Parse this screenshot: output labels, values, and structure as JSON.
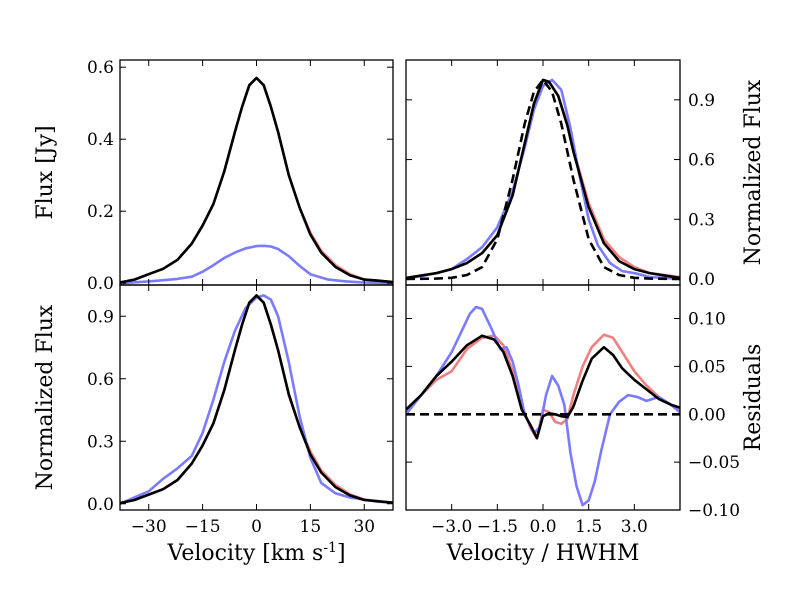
{
  "colors": {
    "blue": "#7b7bff",
    "red": "#f08080",
    "black": "#000000"
  },
  "chart_data": [
    {
      "type": "line",
      "panel": "top-left",
      "xlim": [
        -38,
        38
      ],
      "ylim": [
        -0.005,
        0.62
      ],
      "xticks": [
        -30,
        -15,
        0,
        15,
        30
      ],
      "xtick_labels": [
        "",
        "",
        "",
        "",
        ""
      ],
      "yticks": [
        0.0,
        0.2,
        0.4,
        0.6
      ],
      "ytick_labels": [
        "0.0",
        "0.2",
        "0.4",
        "0.6"
      ],
      "ytick_side": "left",
      "xlabel": "",
      "ylabel": "Flux [Jy]",
      "ylabel_side": "left",
      "series": [
        {
          "color": "red",
          "dash": false,
          "x": [
            -38,
            -34,
            -30,
            -26,
            -22,
            -18,
            -15,
            -12,
            -9,
            -6,
            -4,
            -2,
            0,
            2,
            4,
            6,
            9,
            12,
            15,
            18,
            22,
            26,
            30,
            34,
            38
          ],
          "y": [
            0.002,
            0.01,
            0.025,
            0.04,
            0.065,
            0.11,
            0.16,
            0.22,
            0.31,
            0.42,
            0.49,
            0.55,
            0.57,
            0.55,
            0.49,
            0.42,
            0.3,
            0.21,
            0.14,
            0.09,
            0.05,
            0.025,
            0.01,
            0.007,
            0.003
          ]
        },
        {
          "color": "blue",
          "dash": false,
          "x": [
            -38,
            -30,
            -22,
            -18,
            -15,
            -12,
            -9,
            -6,
            -3,
            0,
            2,
            4,
            6,
            9,
            12,
            15,
            20,
            25,
            30,
            38
          ],
          "y": [
            0.0,
            0.005,
            0.012,
            0.018,
            0.032,
            0.05,
            0.07,
            0.085,
            0.097,
            0.103,
            0.104,
            0.102,
            0.095,
            0.075,
            0.048,
            0.025,
            0.01,
            0.005,
            0.002,
            0.0
          ]
        },
        {
          "color": "black",
          "dash": false,
          "x": [
            -38,
            -34,
            -30,
            -26,
            -22,
            -18,
            -15,
            -12,
            -9,
            -6,
            -4,
            -2,
            0,
            2,
            4,
            6,
            9,
            12,
            15,
            18,
            22,
            26,
            30,
            34,
            38
          ],
          "y": [
            0.002,
            0.01,
            0.025,
            0.04,
            0.065,
            0.11,
            0.16,
            0.22,
            0.31,
            0.42,
            0.49,
            0.55,
            0.57,
            0.55,
            0.49,
            0.42,
            0.3,
            0.21,
            0.135,
            0.085,
            0.045,
            0.022,
            0.01,
            0.007,
            0.003
          ]
        }
      ]
    },
    {
      "type": "line",
      "panel": "top-right",
      "xlim": [
        -4.5,
        4.5
      ],
      "ylim": [
        -0.03,
        1.1
      ],
      "xticks": [
        -3.0,
        -1.5,
        0.0,
        1.5,
        3.0
      ],
      "xtick_labels": [
        "",
        "",
        "",
        "",
        ""
      ],
      "yticks": [
        0.0,
        0.3,
        0.6,
        0.9
      ],
      "ytick_labels": [
        "0.0",
        "0.3",
        "0.6",
        "0.9"
      ],
      "ytick_side": "right",
      "xlabel": "",
      "ylabel": "Normalized Flux",
      "ylabel_side": "right",
      "series": [
        {
          "color": "red",
          "dash": false,
          "x": [
            -4.5,
            -3.5,
            -3.0,
            -2.5,
            -2.0,
            -1.5,
            -1.0,
            -0.6,
            -0.3,
            0.0,
            0.2,
            0.5,
            0.8,
            1.0,
            1.5,
            2.0,
            2.5,
            3.0,
            3.5,
            4.5
          ],
          "y": [
            0.005,
            0.03,
            0.05,
            0.08,
            0.13,
            0.22,
            0.42,
            0.68,
            0.88,
            1.0,
            0.99,
            0.92,
            0.78,
            0.65,
            0.38,
            0.2,
            0.11,
            0.06,
            0.03,
            0.01
          ]
        },
        {
          "color": "blue",
          "dash": false,
          "x": [
            -4.5,
            -3.5,
            -3.0,
            -2.5,
            -2.0,
            -1.5,
            -1.0,
            -0.6,
            -0.3,
            0.0,
            0.3,
            0.6,
            0.9,
            1.2,
            1.5,
            1.8,
            2.2,
            2.6,
            3.0,
            3.5,
            4.5
          ],
          "y": [
            0.0,
            0.03,
            0.05,
            0.1,
            0.16,
            0.26,
            0.44,
            0.66,
            0.85,
            0.97,
            1.0,
            0.95,
            0.76,
            0.52,
            0.3,
            0.17,
            0.08,
            0.04,
            0.03,
            0.01,
            0.0
          ]
        },
        {
          "color": "black",
          "dash": false,
          "x": [
            -4.5,
            -3.5,
            -3.0,
            -2.5,
            -2.0,
            -1.5,
            -1.0,
            -0.6,
            -0.3,
            0.0,
            0.2,
            0.5,
            0.8,
            1.0,
            1.5,
            2.0,
            2.5,
            3.0,
            3.5,
            4.5
          ],
          "y": [
            0.005,
            0.03,
            0.05,
            0.08,
            0.13,
            0.22,
            0.42,
            0.68,
            0.88,
            1.0,
            0.99,
            0.92,
            0.77,
            0.64,
            0.36,
            0.18,
            0.09,
            0.05,
            0.03,
            0.005
          ]
        },
        {
          "color": "black",
          "dash": true,
          "x": [
            -4.5,
            -3.5,
            -3.0,
            -2.5,
            -2.0,
            -1.5,
            -1.0,
            -0.6,
            -0.3,
            0.0,
            0.3,
            0.6,
            1.0,
            1.5,
            2.0,
            2.5,
            3.0,
            3.5,
            4.5
          ],
          "y": [
            0.0,
            0.002,
            0.006,
            0.02,
            0.06,
            0.2,
            0.5,
            0.78,
            0.94,
            1.0,
            0.94,
            0.78,
            0.5,
            0.2,
            0.06,
            0.02,
            0.006,
            0.002,
            0.0
          ]
        }
      ]
    },
    {
      "type": "line",
      "panel": "bottom-left",
      "xlim": [
        -38,
        38
      ],
      "ylim": [
        -0.03,
        1.05
      ],
      "xticks": [
        -30,
        -15,
        0,
        15,
        30
      ],
      "xtick_labels": [
        "−30",
        "−15",
        "0",
        "15",
        "30"
      ],
      "yticks": [
        0.0,
        0.3,
        0.6,
        0.9
      ],
      "ytick_labels": [
        "0.0",
        "0.3",
        "0.6",
        "0.9"
      ],
      "ytick_side": "left",
      "xlabel": "Velocity [km s$^{-1}$]",
      "ylabel": "Normalized Flux",
      "ylabel_side": "left",
      "series": [
        {
          "color": "red",
          "dash": false,
          "x": [
            -38,
            -34,
            -30,
            -26,
            -22,
            -18,
            -15,
            -12,
            -9,
            -6,
            -4,
            -2,
            0,
            2,
            4,
            6,
            9,
            12,
            15,
            18,
            22,
            26,
            30,
            34,
            38
          ],
          "y": [
            0.003,
            0.018,
            0.044,
            0.07,
            0.114,
            0.193,
            0.28,
            0.386,
            0.544,
            0.737,
            0.86,
            0.965,
            1.0,
            0.965,
            0.86,
            0.737,
            0.52,
            0.37,
            0.25,
            0.16,
            0.09,
            0.045,
            0.02,
            0.012,
            0.005
          ]
        },
        {
          "color": "blue",
          "dash": false,
          "x": [
            -38,
            -34,
            -30,
            -26,
            -22,
            -18,
            -15,
            -12,
            -9,
            -6,
            -3,
            0,
            2,
            4,
            6,
            9,
            12,
            15,
            18,
            22,
            26,
            30,
            34,
            38
          ],
          "y": [
            0.0,
            0.03,
            0.06,
            0.12,
            0.17,
            0.23,
            0.34,
            0.5,
            0.68,
            0.83,
            0.94,
            0.99,
            1.0,
            0.98,
            0.9,
            0.68,
            0.42,
            0.22,
            0.1,
            0.05,
            0.03,
            0.02,
            0.01,
            0.005
          ]
        },
        {
          "color": "black",
          "dash": false,
          "x": [
            -38,
            -34,
            -30,
            -26,
            -22,
            -18,
            -15,
            -12,
            -9,
            -6,
            -4,
            -2,
            0,
            2,
            4,
            6,
            9,
            12,
            15,
            18,
            22,
            26,
            30,
            34,
            38
          ],
          "y": [
            0.003,
            0.018,
            0.044,
            0.07,
            0.114,
            0.193,
            0.28,
            0.386,
            0.544,
            0.737,
            0.86,
            0.965,
            1.0,
            0.965,
            0.86,
            0.737,
            0.526,
            0.368,
            0.237,
            0.15,
            0.08,
            0.04,
            0.018,
            0.012,
            0.005
          ]
        }
      ]
    },
    {
      "type": "line",
      "panel": "bottom-right",
      "xlim": [
        -4.5,
        4.5
      ],
      "ylim": [
        -0.1,
        0.135
      ],
      "xticks": [
        -3.0,
        -1.5,
        0.0,
        1.5,
        3.0
      ],
      "xtick_labels": [
        "−3.0",
        "−1.5",
        "0.0",
        "1.5",
        "3.0"
      ],
      "yticks": [
        -0.1,
        -0.05,
        0.0,
        0.05,
        0.1
      ],
      "ytick_labels": [
        "−0.10",
        "−0.05",
        "0.00",
        "0.05",
        "0.10"
      ],
      "ytick_side": "right",
      "xlabel": "Velocity / HWHM",
      "ylabel": "Residuals",
      "ylabel_side": "right",
      "series": [
        {
          "color": "red",
          "dash": false,
          "x": [
            -4.5,
            -4.0,
            -3.5,
            -3.0,
            -2.5,
            -2.0,
            -1.6,
            -1.3,
            -1.0,
            -0.7,
            -0.4,
            -0.2,
            0.0,
            0.2,
            0.4,
            0.6,
            0.8,
            1.0,
            1.3,
            1.6,
            2.0,
            2.3,
            2.6,
            3.0,
            3.4,
            3.8,
            4.2,
            4.5
          ],
          "y": [
            0.002,
            0.02,
            0.036,
            0.045,
            0.068,
            0.08,
            0.082,
            0.072,
            0.045,
            0.01,
            -0.015,
            -0.025,
            0.005,
            0.002,
            -0.008,
            -0.01,
            -0.005,
            0.02,
            0.05,
            0.07,
            0.083,
            0.08,
            0.065,
            0.045,
            0.03,
            0.018,
            0.01,
            0.005
          ]
        },
        {
          "color": "blue",
          "dash": false,
          "x": [
            -4.5,
            -4.0,
            -3.5,
            -3.0,
            -2.7,
            -2.4,
            -2.2,
            -2.0,
            -1.7,
            -1.4,
            -1.2,
            -1.0,
            -0.8,
            -0.6,
            -0.3,
            -0.1,
            0.1,
            0.3,
            0.5,
            0.7,
            0.9,
            1.1,
            1.3,
            1.5,
            1.7,
            1.9,
            2.2,
            2.5,
            2.8,
            3.1,
            3.4,
            3.8,
            4.2,
            4.5
          ],
          "y": [
            0.0,
            0.02,
            0.04,
            0.065,
            0.085,
            0.105,
            0.112,
            0.11,
            0.09,
            0.068,
            0.07,
            0.055,
            0.03,
            0.0,
            -0.02,
            -0.013,
            0.02,
            0.04,
            0.03,
            0.01,
            -0.04,
            -0.075,
            -0.095,
            -0.09,
            -0.07,
            -0.04,
            0.0,
            0.013,
            0.02,
            0.018,
            0.014,
            0.018,
            0.01,
            0.002
          ]
        },
        {
          "color": "black",
          "dash": false,
          "x": [
            -4.5,
            -4.0,
            -3.5,
            -3.0,
            -2.5,
            -2.0,
            -1.6,
            -1.3,
            -1.0,
            -0.7,
            -0.4,
            -0.2,
            0.0,
            0.2,
            0.4,
            0.6,
            0.8,
            1.0,
            1.3,
            1.6,
            2.0,
            2.3,
            2.6,
            3.0,
            3.4,
            3.8,
            4.2,
            4.5
          ],
          "y": [
            0.005,
            0.02,
            0.04,
            0.055,
            0.072,
            0.082,
            0.078,
            0.065,
            0.04,
            0.005,
            -0.012,
            -0.025,
            -0.002,
            0.001,
            0.0,
            -0.002,
            -0.003,
            0.008,
            0.035,
            0.058,
            0.07,
            0.062,
            0.048,
            0.036,
            0.026,
            0.016,
            0.01,
            0.007
          ]
        },
        {
          "color": "black",
          "dash": true,
          "x": [
            -4.5,
            4.5
          ],
          "y": [
            0.0,
            0.0
          ]
        }
      ]
    }
  ]
}
